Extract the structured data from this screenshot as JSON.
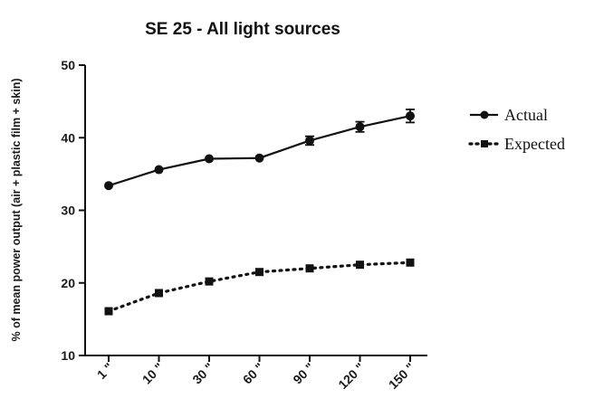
{
  "chart_data": {
    "type": "line",
    "title": "SE 25 - All light sources",
    "xlabel": "",
    "ylabel": "% of mean power output (air + plastic film + skin)",
    "categories": [
      "1 \"",
      "10 \"",
      "30 \"",
      "60 \"",
      "90 \"",
      "120 \"",
      "150 \""
    ],
    "y_ticks": [
      "10",
      "20",
      "30",
      "40",
      "50"
    ],
    "ylim": [
      10,
      50
    ],
    "legend_position": "right",
    "grid": false,
    "series": [
      {
        "name": "Actual",
        "values": [
          33.4,
          35.6,
          37.1,
          37.2,
          39.6,
          41.5,
          43.0
        ],
        "error": [
          0.3,
          0.3,
          0.3,
          0.3,
          0.6,
          0.7,
          0.9
        ],
        "marker": "circle",
        "line": "solid",
        "color": "#111111"
      },
      {
        "name": "Expected",
        "values": [
          16.1,
          18.6,
          20.2,
          21.5,
          22.0,
          22.5,
          22.8
        ],
        "error": [
          0.2,
          0.2,
          0.2,
          0.2,
          0.2,
          0.2,
          0.2
        ],
        "marker": "square",
        "line": "dotted",
        "color": "#111111"
      }
    ]
  }
}
